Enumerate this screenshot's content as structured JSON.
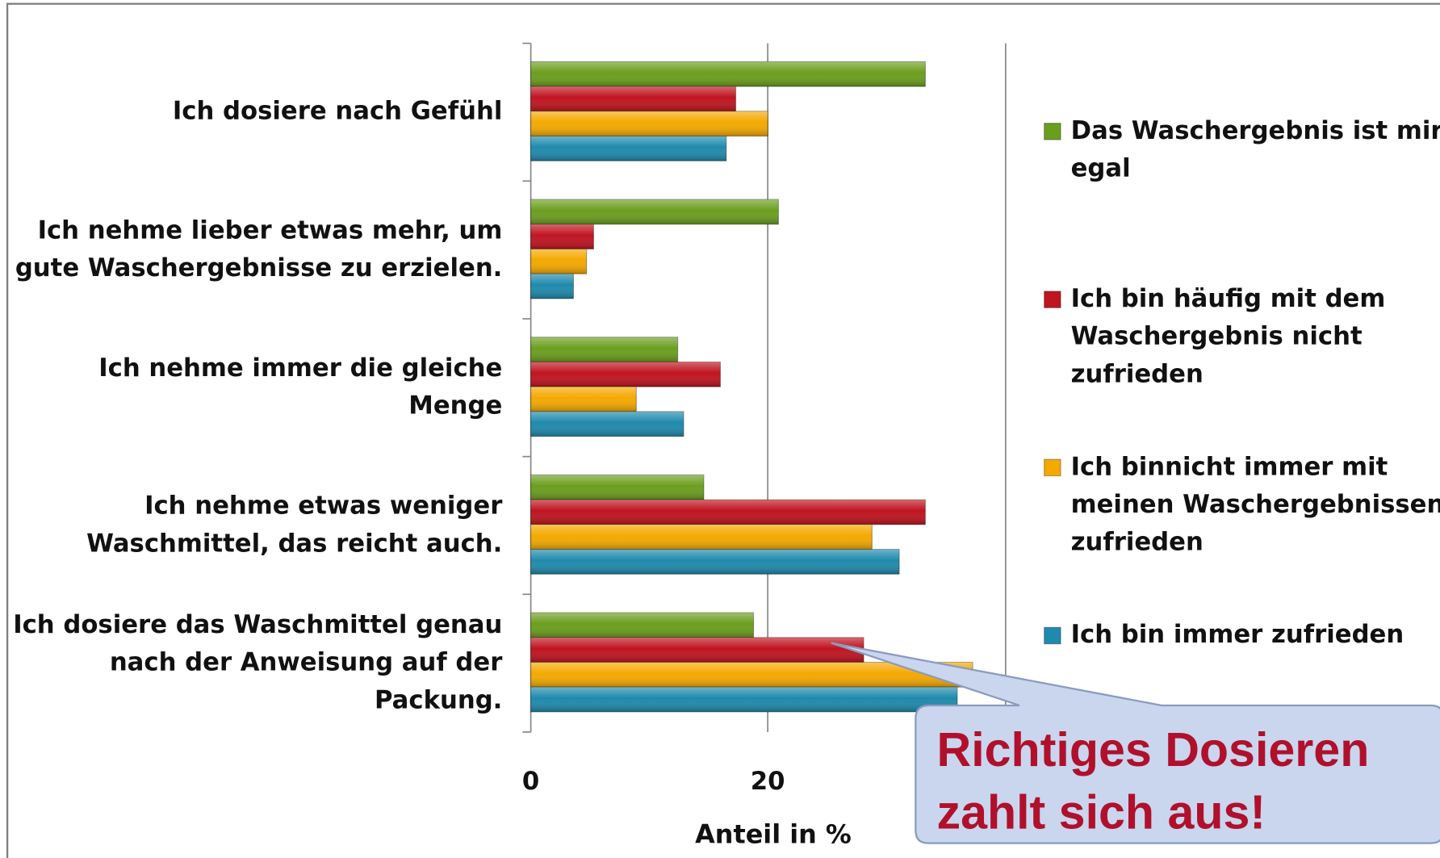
{
  "chart_data": {
    "type": "bar",
    "orientation": "horizontal",
    "categories": [
      "Ich dosiere nach Gefühl",
      "Ich nehme lieber etwas mehr, um\ngute Waschergebnisse zu erzielen.",
      "Ich nehme immer die gleiche\nMenge",
      "Ich nehme etwas weniger\nWaschmittel, das reicht auch.",
      "Ich dosiere das Waschmittel genau\nnach der Anweisung auf der\nPackung."
    ],
    "series": [
      {
        "name": "Das Waschergebnis ist mir\negal",
        "color": "#6b9e1e",
        "values": [
          33.3,
          20.9,
          12.4,
          14.6,
          18.8
        ]
      },
      {
        "name": "Ich bin häufig mit dem\nWaschergebnis nicht\nzufrieden",
        "color": "#c01420",
        "values": [
          17.3,
          5.3,
          16.0,
          33.3,
          28.1
        ]
      },
      {
        "name": "Ich binnicht immer mit\nmeinen Waschergebnissen\nzufrieden",
        "color": "#f4a900",
        "values": [
          20.0,
          4.7,
          8.9,
          28.8,
          37.3
        ]
      },
      {
        "name": "Ich bin immer zufrieden",
        "color": "#1f8aad",
        "values": [
          16.5,
          3.6,
          12.9,
          31.1,
          36.0
        ]
      }
    ],
    "xlabel": "Anteil in %",
    "xlim": [
      0,
      40
    ],
    "xticks": [
      0,
      20
    ],
    "grid": true,
    "legend": "right",
    "annotation": "Richtiges Dosieren\nzahlt sich aus!"
  }
}
